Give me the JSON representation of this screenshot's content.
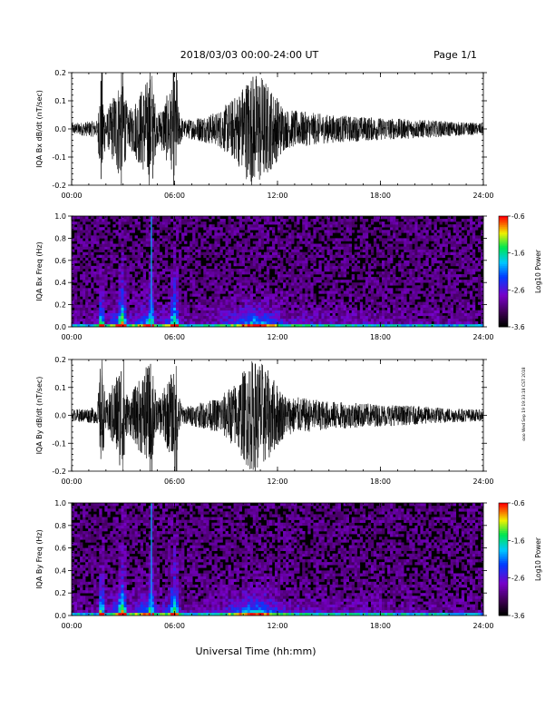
{
  "header": {
    "title": "2018/03/03   00:00-24:00 UT",
    "page": "Page 1/1"
  },
  "footer": {
    "xlabel": "Universal Time (hh:mm)"
  },
  "side_stamp": "ooo Wed Sep 19 19:33:18 CST 2018",
  "chart_data": [
    {
      "type": "line",
      "ylabel": "IQA Bx dB/dt (nT/sec)",
      "ylim": [
        -0.2,
        0.2
      ],
      "yticks": [
        "0.2",
        "0.1",
        "0.0",
        "-0.1",
        "-0.2"
      ],
      "xlim": [
        0,
        24
      ],
      "xticks": [
        "00:00",
        "06:00",
        "12:00",
        "18:00",
        "24:00"
      ],
      "color": "#000000",
      "description_series": [
        {
          "t": 0.0,
          "amp": 0.02
        },
        {
          "t": 1.5,
          "amp": 0.03
        },
        {
          "t": 1.7,
          "amp": 0.2
        },
        {
          "t": 2.0,
          "amp": 0.05
        },
        {
          "t": 2.9,
          "amp": 0.2
        },
        {
          "t": 3.3,
          "amp": 0.06
        },
        {
          "t": 4.6,
          "amp": 0.2
        },
        {
          "t": 5.0,
          "amp": 0.05
        },
        {
          "t": 5.8,
          "amp": 0.15
        },
        {
          "t": 6.5,
          "amp": 0.03
        },
        {
          "t": 8.5,
          "amp": 0.06
        },
        {
          "t": 9.6,
          "amp": 0.12
        },
        {
          "t": 10.4,
          "amp": 0.2
        },
        {
          "t": 11.0,
          "amp": 0.2
        },
        {
          "t": 12.5,
          "amp": 0.07
        },
        {
          "t": 15.0,
          "amp": 0.05
        },
        {
          "t": 18.0,
          "amp": 0.04
        },
        {
          "t": 24.0,
          "amp": 0.02
        }
      ]
    },
    {
      "type": "heatmap",
      "ylabel": "IQA Bx Freq (Hz)",
      "ylim": [
        0.0,
        1.0
      ],
      "yticks": [
        "1.0",
        "0.8",
        "0.6",
        "0.4",
        "0.2",
        "0.0"
      ],
      "xlim": [
        0,
        24
      ],
      "xticks": [
        "00:00",
        "06:00",
        "12:00",
        "18:00",
        "24:00"
      ],
      "colorbar": {
        "label": "Log10 Power",
        "ticks": [
          "-0.6",
          "-1.6",
          "-2.6",
          "-3.6"
        ],
        "range": [
          -3.6,
          -0.6
        ]
      }
    },
    {
      "type": "line",
      "ylabel": "IQA By dB/dt (nT/sec)",
      "ylim": [
        -0.2,
        0.2
      ],
      "yticks": [
        "0.2",
        "0.1",
        "0.0",
        "-0.1",
        "-0.2"
      ],
      "xlim": [
        0,
        24
      ],
      "xticks": [
        "00:00",
        "06:00",
        "12:00",
        "18:00",
        "24:00"
      ],
      "color": "#000000"
    },
    {
      "type": "heatmap",
      "ylabel": "IQA By Freq (Hz)",
      "ylim": [
        0.0,
        1.0
      ],
      "yticks": [
        "1.0",
        "0.8",
        "0.6",
        "0.4",
        "0.2",
        "0.0"
      ],
      "xlim": [
        0,
        24
      ],
      "xticks": [
        "00:00",
        "06:00",
        "12:00",
        "18:00",
        "24:00"
      ],
      "colorbar": {
        "label": "Log10 Power",
        "ticks": [
          "-0.6",
          "-1.6",
          "-2.6",
          "-3.6"
        ],
        "range": [
          -3.6,
          -0.6
        ]
      }
    }
  ]
}
